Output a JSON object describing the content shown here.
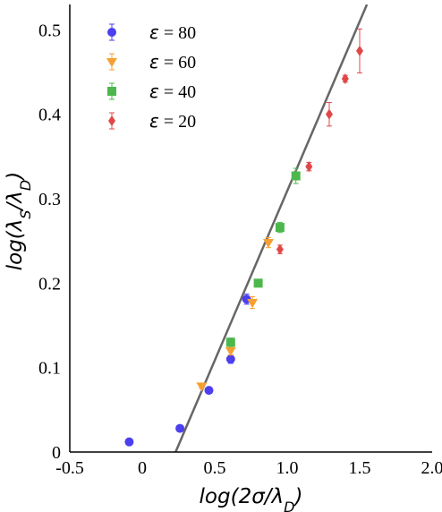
{
  "chart_data": {
    "type": "scatter",
    "xlabel": "log(2σ/λ_D)",
    "ylabel": "log(λ_S/λ_D)",
    "xlim": [
      -0.5,
      2.0
    ],
    "ylim": [
      0,
      0.53
    ],
    "xticks": [
      -0.5,
      0,
      0.5,
      1.0,
      1.5,
      2.0
    ],
    "xtick_labels": [
      "-0.5",
      "0",
      "0.5",
      "1.0",
      "1.5",
      "2.0"
    ],
    "yticks": [
      0,
      0.1,
      0.2,
      0.3,
      0.4,
      0.5
    ],
    "ytick_labels": [
      "0",
      "0.1",
      "0.2",
      "0.3",
      "0.4",
      "0.5"
    ],
    "grid": false,
    "legend_position": "top-left",
    "series": [
      {
        "name": "ε = 80",
        "color": "#4b3ff0",
        "marker": "circle",
        "points": [
          {
            "x": -0.09,
            "y": 0.012,
            "err": 0.002
          },
          {
            "x": 0.26,
            "y": 0.028,
            "err": 0.003
          },
          {
            "x": 0.46,
            "y": 0.073,
            "err": 0.003
          },
          {
            "x": 0.61,
            "y": 0.11,
            "err": 0.005
          },
          {
            "x": 0.72,
            "y": 0.181,
            "err": 0.006
          }
        ]
      },
      {
        "name": "ε = 60",
        "color": "#f5a030",
        "marker": "triangle-down",
        "points": [
          {
            "x": 0.41,
            "y": 0.078,
            "err": 0.003
          },
          {
            "x": 0.61,
            "y": 0.12,
            "err": 0.005
          },
          {
            "x": 0.76,
            "y": 0.177,
            "err": 0.007
          },
          {
            "x": 0.87,
            "y": 0.248,
            "err": 0.006
          }
        ]
      },
      {
        "name": "ε = 40",
        "color": "#4cb84c",
        "marker": "square",
        "points": [
          {
            "x": 0.61,
            "y": 0.13,
            "err": 0.005
          },
          {
            "x": 0.8,
            "y": 0.2,
            "err": 0.004
          },
          {
            "x": 0.95,
            "y": 0.266,
            "err": 0.006
          },
          {
            "x": 1.06,
            "y": 0.327,
            "err": 0.009
          }
        ]
      },
      {
        "name": "ε = 20",
        "color": "#e04848",
        "marker": "diamond",
        "points": [
          {
            "x": 0.95,
            "y": 0.24,
            "err": 0.005
          },
          {
            "x": 1.15,
            "y": 0.338,
            "err": 0.005
          },
          {
            "x": 1.29,
            "y": 0.4,
            "err": 0.014
          },
          {
            "x": 1.4,
            "y": 0.442,
            "err": 0.004
          },
          {
            "x": 1.5,
            "y": 0.475,
            "err": 0.026
          }
        ]
      }
    ],
    "fit_line": {
      "color": "#666666",
      "points": [
        [
          0.23,
          0.0
        ],
        [
          1.55,
          0.53
        ]
      ]
    }
  }
}
